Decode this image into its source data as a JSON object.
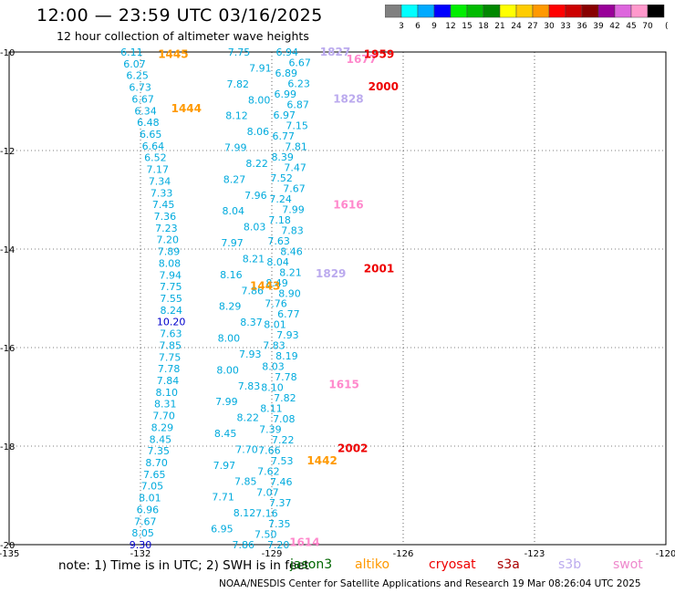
{
  "header": {
    "title": "12:00 — 23:59 UTC 03/16/2025",
    "subtitle": "12 hour collection of altimeter wave heights"
  },
  "colorbar": {
    "labels": [
      "3",
      "6",
      "9",
      "12",
      "15",
      "18",
      "21",
      "24",
      "27",
      "30",
      "33",
      "36",
      "39",
      "42",
      "45",
      "70"
    ],
    "unit": "(ft)",
    "colors": [
      "#808080",
      "#00ffff",
      "#00aaff",
      "#0000ff",
      "#00ee00",
      "#00bb00",
      "#008800",
      "#ffff00",
      "#ffcc00",
      "#ff9900",
      "#ff0000",
      "#cc0000",
      "#880000",
      "#990099",
      "#dd66dd",
      "#ff99cc",
      "#000000"
    ]
  },
  "map": {
    "x_ticks": [
      "-135",
      "-132",
      "-129",
      "-126",
      "-123",
      "-120"
    ],
    "y_ticks": [
      "-10",
      "-12",
      "-14",
      "-16",
      "-18",
      "-20"
    ],
    "lon_range": [
      -135,
      -120
    ],
    "lat_range": [
      -10,
      -20
    ],
    "grid_style": "dotted"
  },
  "tracks": [
    {
      "lon": -132.2,
      "values": [
        "6.11",
        "6.07",
        "6.25",
        "6.73",
        "6.67",
        "6.34",
        "6.48",
        "6.65",
        "6.64",
        "6.52",
        "7.17",
        "7.34",
        "7.33",
        "7.45",
        "7.36",
        "7.23",
        "7.20",
        "7.89",
        "8.08",
        "7.94",
        "7.75",
        "7.55",
        "8.24",
        "10.20",
        "7.63",
        "7.85",
        "7.75",
        "7.78",
        "7.84",
        "8.10",
        "8.31",
        "7.70",
        "8.29",
        "8.45",
        "7.35",
        "8.70",
        "7.65",
        "7.05",
        "8.01",
        "6.96",
        "7.67",
        "8.05",
        "9.30"
      ]
    },
    {
      "lon": -129.7,
      "values": [
        "7.75",
        "7.91",
        "7.82",
        "8.00",
        "8.12",
        "8.06",
        "7.99",
        "8.22",
        "8.27",
        "7.96",
        "8.04",
        "8.03",
        "7.97",
        "8.21",
        "8.16",
        "7.86",
        "8.29",
        "8.37",
        "8.00",
        "7.93",
        "8.00",
        "7.83",
        "7.99",
        "8.22",
        "8.45",
        "7.70",
        "7.97",
        "7.85",
        "7.71",
        "8.12",
        "6.95",
        "7.86"
      ]
    },
    {
      "lon": -128.5,
      "values": [
        "6.94",
        "6.67",
        "6.89",
        "6.23",
        "6.99",
        "6.87",
        "6.97",
        "7.15",
        "6.77",
        "7.81",
        "8.39",
        "7.47",
        "7.52",
        "7.67",
        "7.24",
        "7.99",
        "7.18",
        "7.83",
        "7.63",
        "8.46",
        "8.04",
        "8.21",
        "8.49",
        "8.90",
        "7.76",
        "6.77",
        "8.01",
        "7.93",
        "7.83",
        "8.19",
        "8.03",
        "7.78",
        "8.10",
        "7.82",
        "8.11",
        "7.08",
        "7.39",
        "7.22",
        "7.66",
        "7.53",
        "7.62",
        "7.46",
        "7.07",
        "7.37",
        "7.16",
        "7.35",
        "7.50",
        "7.20"
      ]
    }
  ],
  "pass_labels": [
    {
      "text": "1445",
      "sat": "altika",
      "lon": -131.6,
      "lat": -10.05
    },
    {
      "text": "1444",
      "sat": "altika",
      "lon": -131.3,
      "lat": -11.15
    },
    {
      "text": "1616",
      "sat": "swot",
      "lon": -127.6,
      "lat": -13.1
    },
    {
      "text": "1615",
      "sat": "swot",
      "lon": -127.7,
      "lat": -16.75
    },
    {
      "text": "1614",
      "sat": "swot",
      "lon": -128.6,
      "lat": -19.95
    },
    {
      "text": "1677",
      "sat": "swot",
      "lon": -127.3,
      "lat": -10.15
    },
    {
      "text": "1828",
      "sat": "s3b",
      "lon": -127.6,
      "lat": -10.95
    },
    {
      "text": "1829",
      "sat": "s3b",
      "lon": -128.0,
      "lat": -14.5
    },
    {
      "text": "1827",
      "sat": "s3b",
      "lon": -127.9,
      "lat": -10.0
    },
    {
      "text": "1959",
      "sat": "cryosat",
      "lon": -126.9,
      "lat": -10.05
    },
    {
      "text": "2000",
      "sat": "cryosat",
      "lon": -126.8,
      "lat": -10.7
    },
    {
      "text": "2001",
      "sat": "cryosat",
      "lon": -126.9,
      "lat": -14.4
    },
    {
      "text": "2002",
      "sat": "cryosat",
      "lon": -127.5,
      "lat": -18.05
    },
    {
      "text": "1443",
      "sat": "altika",
      "lon": -129.5,
      "lat": -14.75
    },
    {
      "text": "1442",
      "sat": "altika",
      "lon": -128.2,
      "lat": -18.3
    }
  ],
  "footer": {
    "note": "note:  1) Time is in UTC;  2) SWH is in feet",
    "credit": "NOAA/NESDIS Center for Satellite Applications and Research    19 Mar 08:26:04 UTC 2025",
    "legend": [
      {
        "name": "jason3",
        "color": "#006600"
      },
      {
        "name": "altiko",
        "color": "#ff9900"
      },
      {
        "name": "cryosat",
        "color": "#ee0000"
      },
      {
        "name": "s3a",
        "color": "#aa0000"
      },
      {
        "name": "s3b",
        "color": "#bbaaee"
      },
      {
        "name": "swot",
        "color": "#ee88cc"
      }
    ]
  },
  "sat_colors": {
    "altika": "#ff9900",
    "swot": "#ff88cc",
    "s3b": "#bbaaee",
    "cryosat": "#ee0000",
    "track": "#00aadd",
    "high": "#0000cc"
  }
}
